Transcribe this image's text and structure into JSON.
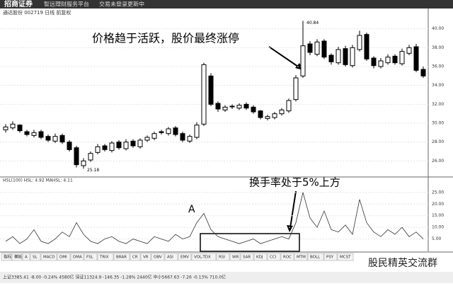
{
  "header": {
    "logo": "招商证券",
    "menu": [
      "智远理财服务平台",
      "交易未登录",
      "更新中"
    ]
  },
  "stock_label": "通达股份 002719 日线 前复权",
  "chart_data": [
    {
      "type": "candlestick",
      "open": [
        29.3,
        29.5,
        29.8,
        29.1,
        28.7,
        29.1,
        28.6,
        28.1,
        28.7,
        28.0,
        27.4,
        25.5,
        26.1,
        26.9,
        27.6,
        27.1,
        28.0,
        27.3,
        28.1,
        27.5,
        28.2,
        28.4,
        29.1,
        28.9,
        29.5,
        28.9,
        28.1,
        28.5,
        29.9,
        35.0,
        32.1,
        31.4,
        31.8,
        31.6,
        32.0,
        31.7,
        31.3,
        30.5,
        30.6,
        31.0,
        31.3,
        32.5,
        35.0,
        38.4,
        37.3,
        38.7,
        37.2,
        36.4,
        37.9,
        36.1,
        37.8,
        39.4,
        36.9,
        36.0,
        36.4,
        37.1,
        36.3,
        37.4,
        38.1,
        35.7
      ],
      "high": [
        29.9,
        30.2,
        29.9,
        29.3,
        29.3,
        29.3,
        28.8,
        28.9,
        28.9,
        28.2,
        27.6,
        26.3,
        27.0,
        27.8,
        27.8,
        28.1,
        28.2,
        28.3,
        28.3,
        28.4,
        28.7,
        29.1,
        29.3,
        29.6,
        29.7,
        29.1,
        28.8,
        30.1,
        36.4,
        35.3,
        32.3,
        31.9,
        32.0,
        32.1,
        32.2,
        31.9,
        31.4,
        30.9,
        31.2,
        31.6,
        32.6,
        35.1,
        40.84,
        38.7,
        38.9,
        38.9,
        37.4,
        38.1,
        38.2,
        38.3,
        39.8,
        39.6,
        37.1,
        36.9,
        37.3,
        37.3,
        37.9,
        38.3,
        38.4,
        36.0
      ],
      "low": [
        29.0,
        29.3,
        29.0,
        28.6,
        28.5,
        28.3,
        28.0,
        27.9,
        27.8,
        27.0,
        25.3,
        25.18,
        25.9,
        26.7,
        27.0,
        26.9,
        27.2,
        27.1,
        27.4,
        27.3,
        28.0,
        28.2,
        28.8,
        28.7,
        28.6,
        28.0,
        27.9,
        28.3,
        29.7,
        31.8,
        31.2,
        31.2,
        31.5,
        31.4,
        31.4,
        31.0,
        30.4,
        30.3,
        30.4,
        30.8,
        31.1,
        32.3,
        34.8,
        37.2,
        37.1,
        36.8,
        36.2,
        36.2,
        36.0,
        35.9,
        37.6,
        36.6,
        35.8,
        35.8,
        36.2,
        36.2,
        36.1,
        37.2,
        35.4,
        34.8
      ],
      "close": [
        29.6,
        29.9,
        29.2,
        28.8,
        29.0,
        28.5,
        28.2,
        28.6,
        28.0,
        27.2,
        25.6,
        26.0,
        26.8,
        27.5,
        27.2,
        27.9,
        27.4,
        28.0,
        27.6,
        28.2,
        28.5,
        28.9,
        29.0,
        29.4,
        28.8,
        28.2,
        28.6,
        29.8,
        36.2,
        32.0,
        31.5,
        31.7,
        31.8,
        31.9,
        31.6,
        31.2,
        30.6,
        30.7,
        31.0,
        31.4,
        32.4,
        34.8,
        38.2,
        37.5,
        38.6,
        37.0,
        36.5,
        37.8,
        36.2,
        38.0,
        39.3,
        36.8,
        36.1,
        36.6,
        37.0,
        36.4,
        37.6,
        38.0,
        35.6,
        35.0
      ],
      "ylim": [
        24.6,
        41.4
      ],
      "yticks": [
        {
          "value": 26,
          "label": "26.00"
        },
        {
          "value": 28,
          "label": "28.00"
        },
        {
          "value": 30,
          "label": "30.00"
        },
        {
          "value": 32,
          "label": "32.00"
        },
        {
          "value": 34,
          "label": "34.00"
        },
        {
          "value": 36,
          "label": "36.00"
        },
        {
          "value": 38,
          "label": "38.00"
        },
        {
          "value": 40,
          "label": "40.00"
        }
      ],
      "high_label": 40.84,
      "low_label": 25.18,
      "note": "价格趋于活跃，股价最终涨停"
    },
    {
      "type": "line",
      "title": "HSL(100) HSL: 4.92 MAHSL: 4.11",
      "values": [
        4,
        6,
        3,
        5,
        9,
        4,
        3,
        5,
        8,
        6,
        12,
        7,
        4,
        3,
        5,
        6,
        4,
        3,
        5,
        4,
        3,
        6,
        5,
        4,
        7,
        5,
        6,
        12,
        16,
        9,
        6,
        5,
        4,
        3,
        4,
        5,
        3,
        4,
        5,
        6,
        5,
        12,
        25,
        14,
        10,
        17,
        9,
        8,
        11,
        7,
        22,
        12,
        8,
        6,
        9,
        7,
        10,
        6,
        8,
        5
      ],
      "ylim": [
        0,
        28
      ],
      "yticks": [
        {
          "value": 5,
          "label": "5.00"
        },
        {
          "value": 10,
          "label": "10.00"
        },
        {
          "value": 15,
          "label": "15.00"
        },
        {
          "value": 20,
          "label": "20.00"
        },
        {
          "value": 25,
          "label": "25.00"
        }
      ],
      "note": "换手率处于5%上方",
      "marker": "A"
    }
  ],
  "tabs": [
    "指标",
    "模板",
    "A",
    "SL",
    "MACD",
    "DMI",
    "DMA",
    "FSL",
    "TRIX",
    "BRAR",
    "CR",
    "VR",
    "OBV",
    "ASI",
    "EMV",
    "VOL-TDX",
    "RSI",
    "WR",
    "SAR",
    "KDJ",
    "CCI",
    "ROC",
    "MTM",
    "BOLL",
    "PSY",
    "MCST"
  ],
  "status_bar": "上证3385.41 -8.00 -0.24% 4580亿 深证11324.9 -146.35 -1.28% 2440亿 中小5667.63 -7.26 -0.13% 710.0亿",
  "watermark": "股民精英交流群"
}
